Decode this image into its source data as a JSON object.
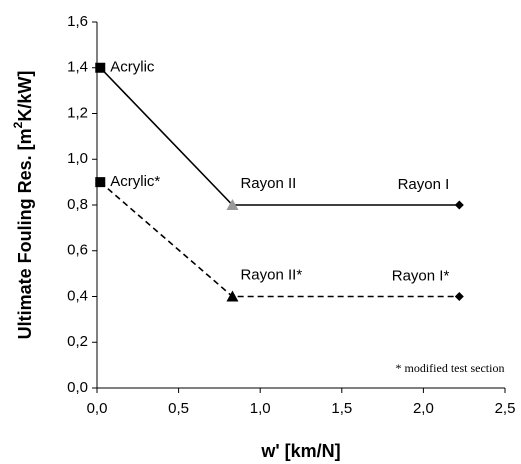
{
  "chart_data": {
    "type": "line",
    "xlabel": "w' [km/N]",
    "ylabel_parts": [
      "Ultimate Fouling Res. [m",
      "2",
      "K/kW]"
    ],
    "annotation": "* modified test section",
    "xlim": [
      0,
      2.5
    ],
    "xticks": [
      {
        "value": 0,
        "label": "0,0"
      },
      {
        "value": 0.5,
        "label": "0,5"
      },
      {
        "value": 1,
        "label": "1,0"
      },
      {
        "value": 1.5,
        "label": "1,5"
      },
      {
        "value": 2,
        "label": "2,0"
      },
      {
        "value": 2.5,
        "label": "2,5"
      }
    ],
    "ylim": [
      0,
      1.6
    ],
    "yticks": [
      {
        "value": 0,
        "label": "0,0"
      },
      {
        "value": 0.2,
        "label": "0,2"
      },
      {
        "value": 0.4,
        "label": "0,4"
      },
      {
        "value": 0.6,
        "label": "0,6"
      },
      {
        "value": 0.8,
        "label": "0,8"
      },
      {
        "value": 1,
        "label": "1,0"
      },
      {
        "value": 1.2,
        "label": "1,2"
      },
      {
        "value": 1.4,
        "label": "1,4"
      },
      {
        "value": 1.6,
        "label": "1,6"
      }
    ],
    "series": [
      {
        "color": "#000000",
        "dash": false,
        "x": [
          0.02,
          0.83,
          2.22
        ],
        "values": [
          1.4,
          0.8,
          0.8
        ],
        "point_labels": [
          "Acrylic",
          "Rayon II",
          "Rayon I"
        ],
        "markers": [
          "square",
          "triangle",
          "diamond"
        ],
        "marker_colors": [
          "#000000",
          "#999999",
          "#000000"
        ]
      },
      {
        "color": "#000000",
        "dash": true,
        "x": [
          0.02,
          0.83,
          2.22
        ],
        "values": [
          0.9,
          0.4,
          0.4
        ],
        "point_labels": [
          "Acrylic*",
          "Rayon II*",
          "Rayon I*"
        ],
        "markers": [
          "square",
          "triangle",
          "diamond"
        ],
        "marker_colors": [
          "#000000",
          "#000000",
          "#000000"
        ]
      }
    ]
  }
}
